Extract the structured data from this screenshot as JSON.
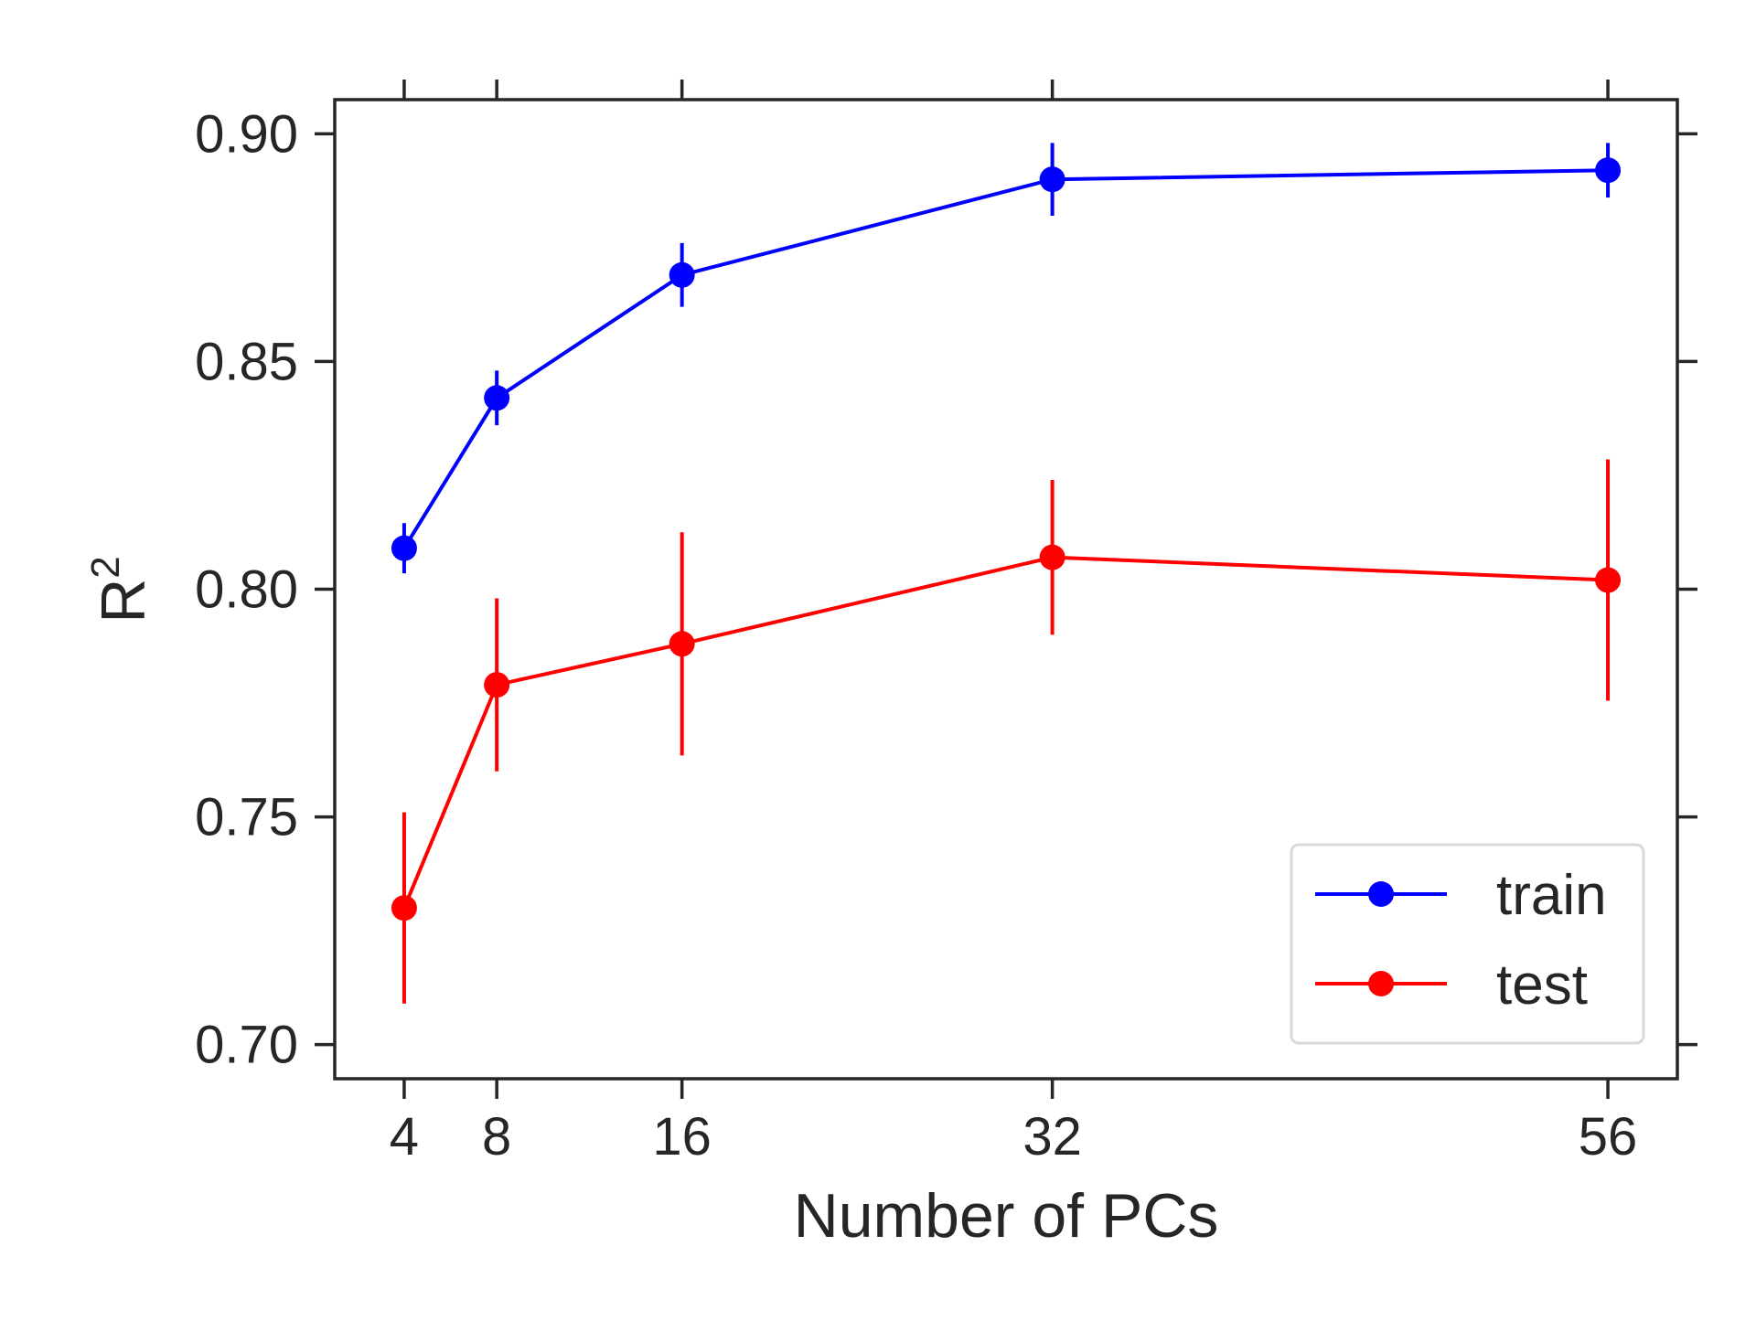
{
  "chart_data": {
    "type": "line",
    "title": "",
    "xlabel": "Number of PCs",
    "ylabel": "R",
    "ylabel_superscript": "2",
    "x": [
      4,
      8,
      16,
      32,
      56
    ],
    "x_tick_labels": [
      "4",
      "8",
      "16",
      "32",
      "56"
    ],
    "xlim": [
      1,
      59
    ],
    "ylim": [
      0.6925,
      0.9075
    ],
    "y_ticks": [
      0.7,
      0.75,
      0.8,
      0.85,
      0.9
    ],
    "y_tick_labels": [
      "0.70",
      "0.75",
      "0.80",
      "0.85",
      "0.90"
    ],
    "grid": false,
    "legend_position": "lower-right",
    "series": [
      {
        "name": "train",
        "color": "#0000ff",
        "values": [
          0.809,
          0.842,
          0.869,
          0.89,
          0.892
        ],
        "errors": [
          0.0055,
          0.006,
          0.007,
          0.008,
          0.006
        ]
      },
      {
        "name": "test",
        "color": "#ff0000",
        "values": [
          0.73,
          0.779,
          0.788,
          0.807,
          0.802
        ],
        "errors": [
          0.021,
          0.019,
          0.0245,
          0.017,
          0.0265
        ]
      }
    ]
  }
}
